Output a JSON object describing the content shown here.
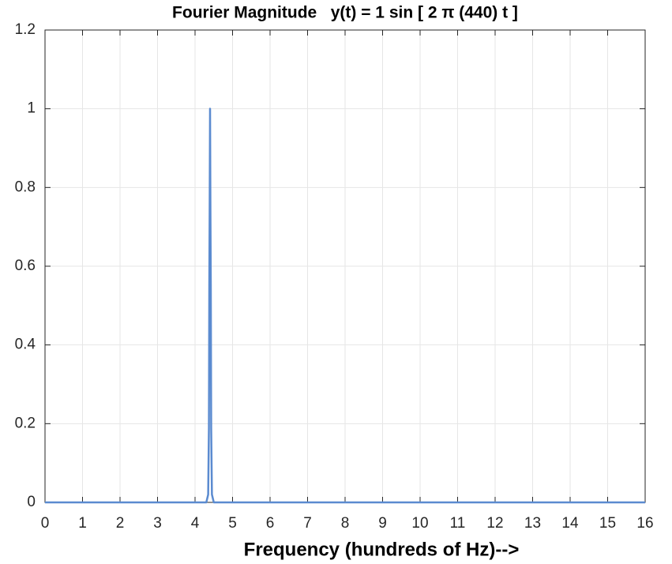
{
  "chart_data": {
    "type": "line",
    "title": "Fourier Magnitude   y(t) = 1 sin [ 2 π (440) t ]",
    "xlabel": "Frequency (hundreds of Hz)-->",
    "x": [
      0,
      4.3,
      4.35,
      4.37,
      4.38,
      4.39,
      4.4,
      4.41,
      4.42,
      4.43,
      4.45,
      4.5,
      16
    ],
    "values": [
      0,
      0,
      0.02,
      0.19,
      0.55,
      0.74,
      1,
      0.74,
      0.55,
      0.19,
      0.02,
      0,
      0
    ],
    "color": "#5b8bd0",
    "xlim": [
      0,
      16
    ],
    "xticks": [
      0,
      1,
      2,
      3,
      4,
      5,
      6,
      7,
      8,
      9,
      10,
      11,
      12,
      13,
      14,
      15,
      16
    ],
    "ylim": [
      0,
      1.2
    ],
    "yticks": [
      0,
      0.2,
      0.4,
      0.6,
      0.8,
      1,
      1.2
    ],
    "grid": true
  }
}
